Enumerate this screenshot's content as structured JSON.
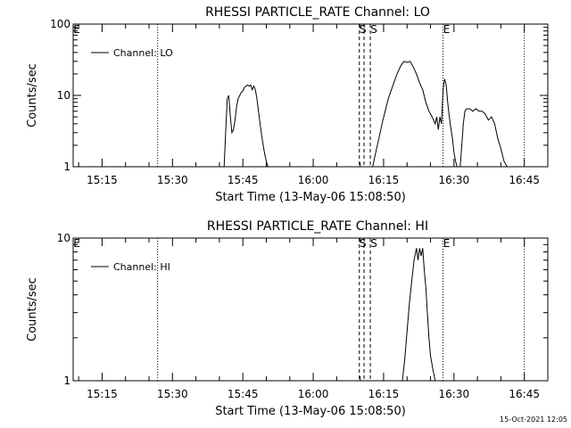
{
  "footer": {
    "timestamp": "15-Oct-2021 12:05"
  },
  "chart_data": [
    {
      "type": "line",
      "title": "RHESSI PARTICLE_RATE Channel: LO",
      "xlabel": "Start Time (13-May-06 15:08:50)",
      "ylabel": "Counts/sec",
      "yscale": "log",
      "xlim": [
        "15:08:50",
        "16:50:00"
      ],
      "ylim": [
        1,
        100
      ],
      "x_tick_labels": [
        "15:15",
        "15:30",
        "15:45",
        "16:00",
        "16:15",
        "16:30",
        "16:45"
      ],
      "y_tick_labels": [
        "1",
        "10",
        "100"
      ],
      "legend": {
        "location": "top-left",
        "entries": [
          "Channel: LO"
        ]
      },
      "markers": [
        {
          "label": "E",
          "time": "15:08:50",
          "style": "dotted"
        },
        {
          "label": "",
          "time": "15:26:50",
          "style": "dotted"
        },
        {
          "label": "S",
          "time": "16:09:50",
          "style": "dashed"
        },
        {
          "label": "",
          "time": "16:10:50",
          "style": "dashed"
        },
        {
          "label": "S",
          "time": "16:12:10",
          "style": "dashed"
        },
        {
          "label": "E",
          "time": "16:27:40",
          "style": "dotted"
        },
        {
          "label": "",
          "time": "16:45:00",
          "style": "dotted"
        }
      ],
      "series": [
        {
          "name": "Channel: LO",
          "segments": [
            {
              "x": [
                "15:41:00",
                "15:41:20",
                "15:41:40",
                "15:42:00",
                "15:42:20",
                "15:42:40",
                "15:43:00",
                "15:43:20",
                "15:43:40",
                "15:44:00",
                "15:44:20",
                "15:44:40",
                "15:45:00",
                "15:45:20",
                "15:45:40",
                "15:46:00",
                "15:46:20",
                "15:46:40",
                "15:47:00",
                "15:47:20",
                "15:47:40",
                "15:48:00",
                "15:48:20",
                "15:48:40",
                "15:49:00",
                "15:49:20",
                "15:49:40",
                "15:50:00",
                "15:50:20"
              ],
              "y": [
                1,
                3,
                9,
                10,
                5,
                3,
                3.3,
                4.5,
                7,
                9,
                10,
                11,
                11.5,
                13,
                13.5,
                14,
                13.5,
                14,
                12,
                13.5,
                12,
                9,
                6,
                4,
                2.8,
                2,
                1.5,
                1.2,
                1
              ]
            },
            {
              "x": [
                "16:12:40",
                "16:13:20",
                "16:14:00",
                "16:14:40",
                "16:15:20",
                "16:16:00",
                "16:16:40",
                "16:17:20",
                "16:18:00",
                "16:18:40",
                "16:19:20",
                "16:20:00",
                "16:20:40",
                "16:21:20",
                "16:22:00",
                "16:22:40",
                "16:23:20",
                "16:24:00",
                "16:24:40",
                "16:25:20",
                "16:26:00",
                "16:26:20",
                "16:26:40",
                "16:27:00",
                "16:27:20",
                "16:27:40",
                "16:28:00",
                "16:28:20",
                "16:28:40",
                "16:29:00",
                "16:29:20",
                "16:29:40",
                "16:30:00",
                "16:30:20",
                "16:30:40",
                "16:31:00"
              ],
              "y": [
                1,
                1.6,
                2.5,
                4,
                6,
                9,
                12,
                16,
                21,
                26,
                30,
                29,
                30,
                25,
                20,
                15,
                12,
                8,
                6,
                5,
                4,
                5,
                3.3,
                5,
                4,
                12,
                17,
                14,
                8,
                5,
                3.5,
                2.5,
                1.6,
                1.2,
                1,
                1
              ]
            },
            {
              "x": [
                "16:31:20",
                "16:31:40",
                "16:32:00",
                "16:32:20",
                "16:32:40",
                "16:33:20",
                "16:34:00",
                "16:34:40",
                "16:35:20",
                "16:36:00",
                "16:36:40",
                "16:37:20",
                "16:38:00",
                "16:38:40",
                "16:39:20",
                "16:40:00",
                "16:40:40",
                "16:41:20"
              ],
              "y": [
                1,
                2,
                4,
                6,
                6.5,
                6.5,
                6,
                6.5,
                6,
                6,
                5.5,
                4.5,
                5,
                4,
                2.5,
                1.8,
                1.2,
                1
              ]
            }
          ]
        }
      ]
    },
    {
      "type": "line",
      "title": "RHESSI PARTICLE_RATE Channel: HI",
      "xlabel": "Start Time (13-May-06 15:08:50)",
      "ylabel": "Counts/sec",
      "yscale": "log",
      "xlim": [
        "15:08:50",
        "16:50:00"
      ],
      "ylim": [
        1,
        10
      ],
      "x_tick_labels": [
        "15:15",
        "15:30",
        "15:45",
        "16:00",
        "16:15",
        "16:30",
        "16:45"
      ],
      "y_tick_labels": [
        "1",
        "10"
      ],
      "legend": {
        "location": "top-left",
        "entries": [
          "Channel: HI"
        ]
      },
      "markers": [
        {
          "label": "E",
          "time": "15:08:50",
          "style": "dotted"
        },
        {
          "label": "",
          "time": "15:26:50",
          "style": "dotted"
        },
        {
          "label": "S",
          "time": "16:09:50",
          "style": "dashed"
        },
        {
          "label": "",
          "time": "16:10:50",
          "style": "dashed"
        },
        {
          "label": "S",
          "time": "16:12:10",
          "style": "dashed"
        },
        {
          "label": "E",
          "time": "16:27:40",
          "style": "dotted"
        },
        {
          "label": "",
          "time": "16:45:00",
          "style": "dotted"
        }
      ],
      "series": [
        {
          "name": "Channel: HI",
          "segments": [
            {
              "x": [
                "16:19:00",
                "16:19:30",
                "16:20:00",
                "16:20:30",
                "16:21:00",
                "16:21:30",
                "16:22:00",
                "16:22:20",
                "16:22:40",
                "16:23:00",
                "16:23:20",
                "16:23:40",
                "16:24:00",
                "16:24:20",
                "16:24:40",
                "16:25:00",
                "16:25:30",
                "16:26:00"
              ],
              "y": [
                1,
                1.4,
                2.2,
                3.5,
                5,
                7,
                8.5,
                7,
                8.5,
                7.5,
                8.5,
                6,
                4.5,
                3,
                2,
                1.5,
                1.2,
                1
              ]
            }
          ]
        }
      ]
    }
  ]
}
